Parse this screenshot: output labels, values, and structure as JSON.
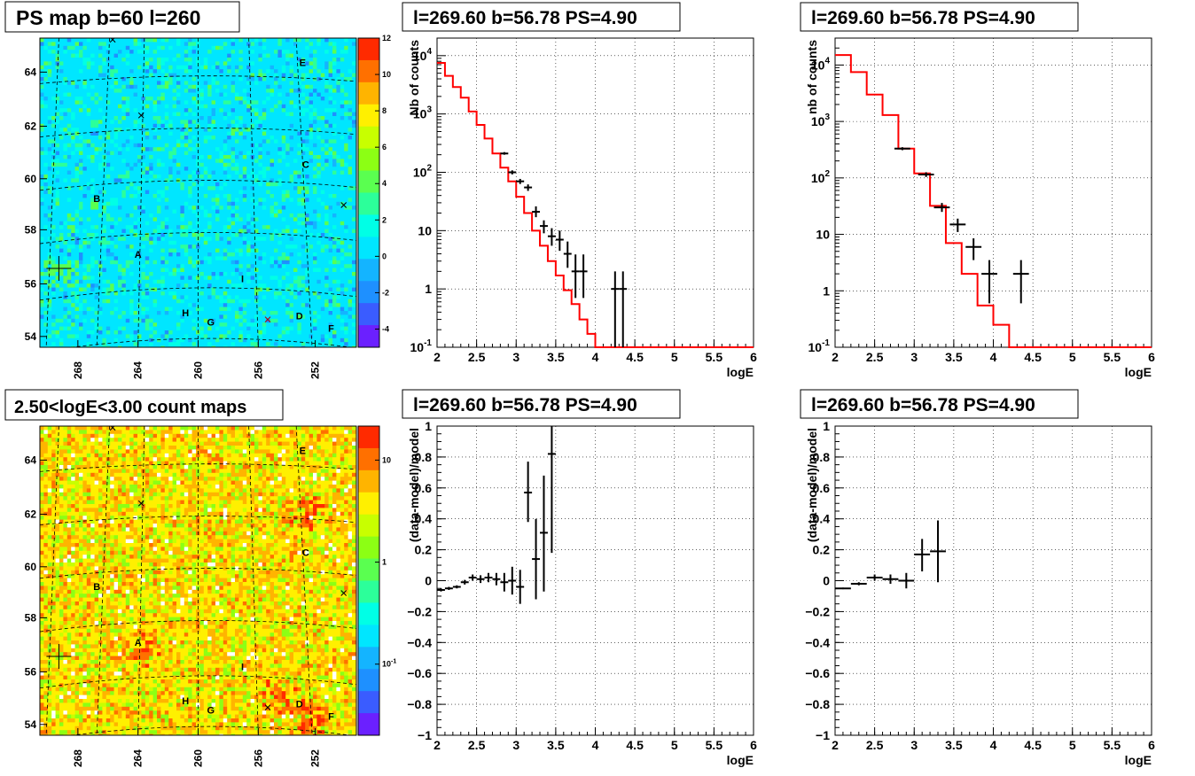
{
  "panels": {
    "map_top_title": "PS map b=60 l=260",
    "map_bottom_title": "2.50<logE<3.00 count maps",
    "spec_top_left_title": "l=269.60 b=56.78 PS=4.90",
    "spec_top_right_title": "l=269.60 b=56.78 PS=4.90",
    "res_bottom_left_title": "l=269.60 b=56.78 PS=4.90",
    "res_bottom_right_title": "l=269.60 b=56.78 PS=4.90"
  },
  "maps": {
    "x_ticks": [
      "268",
      "264",
      "260",
      "256",
      "252"
    ],
    "y_ticks": [
      "64",
      "62",
      "60",
      "58",
      "56",
      "54"
    ],
    "source_labels": [
      "A",
      "B",
      "C",
      "D",
      "E",
      "F",
      "G",
      "H",
      "I"
    ],
    "top_colorbar_ticks": [
      "12",
      "10",
      "8",
      "6",
      "4",
      "2",
      "0",
      "-2",
      "-4"
    ],
    "bottom_colorbar_ticks": [
      "10",
      "1",
      "10-1"
    ]
  },
  "chart_data": [
    {
      "type": "line",
      "panel": "top-middle",
      "title": "l=269.60 b=56.78 PS=4.90",
      "xlabel": "logE",
      "ylabel": "Nb of counts",
      "xlim": [
        2,
        6
      ],
      "ylim": [
        0.1,
        20000
      ],
      "ylog": true,
      "grid": true,
      "x_ticks": [
        "2",
        "2.5",
        "3",
        "3.5",
        "4",
        "4.5",
        "5",
        "5.5",
        "6"
      ],
      "y_ticks": [
        "10^4",
        "10^3",
        "10^2",
        "10",
        "1",
        "10^-1"
      ],
      "series": [
        {
          "type": "step",
          "color": "#ff0000",
          "x": [
            2.0,
            2.1,
            2.2,
            2.3,
            2.4,
            2.5,
            2.6,
            2.7,
            2.8,
            2.9,
            3.0,
            3.1,
            3.2,
            3.3,
            3.4,
            3.5,
            3.6,
            3.7,
            3.8,
            3.9,
            4.0,
            4.1,
            4.2,
            6.0
          ],
          "values": [
            7500,
            4500,
            2900,
            1900,
            1100,
            650,
            380,
            210,
            120,
            70,
            38,
            20,
            10,
            5.5,
            3.0,
            1.7,
            0.95,
            0.55,
            0.3,
            0.17,
            0.1,
            0.1,
            0.1,
            0.1
          ]
        },
        {
          "type": "errorbar",
          "color": "#000000",
          "points": [
            {
              "x": 2.85,
              "y": 210,
              "ylo": 200,
              "yhi": 222
            },
            {
              "x": 2.95,
              "y": 100,
              "ylo": 92,
              "yhi": 108
            },
            {
              "x": 3.05,
              "y": 70,
              "ylo": 63,
              "yhi": 77
            },
            {
              "x": 3.15,
              "y": 55,
              "ylo": 48,
              "yhi": 62
            },
            {
              "x": 3.25,
              "y": 21,
              "ylo": 17,
              "yhi": 26
            },
            {
              "x": 3.35,
              "y": 12,
              "ylo": 9,
              "yhi": 15
            },
            {
              "x": 3.45,
              "y": 8,
              "ylo": 5.5,
              "yhi": 11
            },
            {
              "x": 3.55,
              "y": 7,
              "ylo": 4.5,
              "yhi": 10
            },
            {
              "x": 3.65,
              "y": 4,
              "ylo": 2.3,
              "yhi": 6.5
            },
            {
              "x": 3.75,
              "y": 2,
              "ylo": 0.7,
              "yhi": 3.9
            },
            {
              "x": 3.85,
              "y": 2,
              "ylo": 0.7,
              "yhi": 3.9
            },
            {
              "x": 4.25,
              "y": 1,
              "ylo": 0.1,
              "yhi": 2.0
            },
            {
              "x": 4.35,
              "y": 1,
              "ylo": 0.1,
              "yhi": 2.0
            }
          ]
        }
      ]
    },
    {
      "type": "line",
      "panel": "top-right",
      "title": "l=269.60 b=56.78 PS=4.90",
      "xlabel": "logE",
      "ylabel": "nb of counts",
      "xlim": [
        2,
        6
      ],
      "ylim": [
        0.1,
        30000
      ],
      "ylog": true,
      "grid": true,
      "x_ticks": [
        "2",
        "2.5",
        "3",
        "3.5",
        "4",
        "4.5",
        "5",
        "5.5",
        "6"
      ],
      "y_ticks": [
        "10^4",
        "10^3",
        "10^2",
        "10",
        "1",
        "10^-1"
      ],
      "series": [
        {
          "type": "step",
          "color": "#ff0000",
          "x": [
            2.0,
            2.2,
            2.4,
            2.6,
            2.8,
            3.0,
            3.2,
            3.4,
            3.6,
            3.8,
            4.0,
            4.2,
            6.0
          ],
          "values": [
            15000,
            7500,
            3000,
            1300,
            330,
            120,
            32,
            7,
            2,
            0.55,
            0.25,
            0.1,
            0.1
          ]
        },
        {
          "type": "errorbar",
          "color": "#000000",
          "points": [
            {
              "x": 2.85,
              "y": 330,
              "ylo": 310,
              "yhi": 350
            },
            {
              "x": 3.15,
              "y": 115,
              "ylo": 104,
              "yhi": 126
            },
            {
              "x": 3.35,
              "y": 30,
              "ylo": 25,
              "yhi": 36
            },
            {
              "x": 3.55,
              "y": 15,
              "ylo": 11,
              "yhi": 19
            },
            {
              "x": 3.75,
              "y": 6,
              "ylo": 3.5,
              "yhi": 8.5
            },
            {
              "x": 3.95,
              "y": 2,
              "ylo": 0.6,
              "yhi": 3.5
            },
            {
              "x": 4.35,
              "y": 2,
              "ylo": 0.6,
              "yhi": 3.5
            }
          ]
        }
      ]
    },
    {
      "type": "scatter",
      "panel": "bottom-middle",
      "title": "l=269.60 b=56.78 PS=4.90",
      "xlabel": "logE",
      "ylabel": "(data-model)/model",
      "xlim": [
        2,
        6
      ],
      "ylim": [
        -1,
        1
      ],
      "grid": true,
      "x_ticks": [
        "2",
        "2.5",
        "3",
        "3.5",
        "4",
        "4.5",
        "5",
        "5.5",
        "6"
      ],
      "y_ticks": [
        "1",
        "0.8",
        "0.6",
        "0.4",
        "0.2",
        "0",
        "-0.2",
        "-0.4",
        "-0.6",
        "-0.8",
        "-1"
      ],
      "series": [
        {
          "type": "errorbar",
          "color": "#000000",
          "points": [
            {
              "x": 2.05,
              "y": -0.06,
              "ylo": -0.07,
              "yhi": -0.05
            },
            {
              "x": 2.15,
              "y": -0.05,
              "ylo": -0.06,
              "yhi": -0.04
            },
            {
              "x": 2.25,
              "y": -0.04,
              "ylo": -0.05,
              "yhi": -0.03
            },
            {
              "x": 2.35,
              "y": -0.01,
              "ylo": -0.025,
              "yhi": 0.005
            },
            {
              "x": 2.45,
              "y": 0.02,
              "ylo": 0.0,
              "yhi": 0.04
            },
            {
              "x": 2.55,
              "y": 0.01,
              "ylo": -0.015,
              "yhi": 0.035
            },
            {
              "x": 2.65,
              "y": 0.02,
              "ylo": -0.01,
              "yhi": 0.05
            },
            {
              "x": 2.75,
              "y": 0.01,
              "ylo": -0.03,
              "yhi": 0.05
            },
            {
              "x": 2.85,
              "y": -0.01,
              "ylo": -0.07,
              "yhi": 0.05
            },
            {
              "x": 2.95,
              "y": 0.0,
              "ylo": -0.09,
              "yhi": 0.09
            },
            {
              "x": 3.05,
              "y": -0.04,
              "ylo": -0.15,
              "yhi": 0.07
            },
            {
              "x": 3.15,
              "y": 0.57,
              "ylo": 0.38,
              "yhi": 0.77
            },
            {
              "x": 3.25,
              "y": 0.14,
              "ylo": -0.12,
              "yhi": 0.4
            },
            {
              "x": 3.35,
              "y": 0.31,
              "ylo": -0.07,
              "yhi": 0.68
            },
            {
              "x": 3.45,
              "y": 0.82,
              "ylo": 0.18,
              "yhi": 1.0
            }
          ]
        }
      ]
    },
    {
      "type": "scatter",
      "panel": "bottom-right",
      "title": "l=269.60 b=56.78 PS=4.90",
      "xlabel": "logE",
      "ylabel": "(data-model)/model",
      "xlim": [
        2,
        6
      ],
      "ylim": [
        -1,
        1
      ],
      "grid": true,
      "x_ticks": [
        "2",
        "2.5",
        "3",
        "3.5",
        "4",
        "4.5",
        "5",
        "5.5",
        "6"
      ],
      "y_ticks": [
        "1",
        "0.8",
        "0.6",
        "0.4",
        "0.2",
        "0",
        "-0.2",
        "-0.4",
        "-0.6",
        "-0.8",
        "-1"
      ],
      "series": [
        {
          "type": "errorbar",
          "color": "#000000",
          "points": [
            {
              "x": 2.1,
              "y": -0.05,
              "ylo": -0.055,
              "yhi": -0.045
            },
            {
              "x": 2.3,
              "y": -0.02,
              "ylo": -0.03,
              "yhi": -0.01
            },
            {
              "x": 2.5,
              "y": 0.02,
              "ylo": 0.0,
              "yhi": 0.04
            },
            {
              "x": 2.7,
              "y": 0.01,
              "ylo": -0.02,
              "yhi": 0.04
            },
            {
              "x": 2.9,
              "y": 0.0,
              "ylo": -0.05,
              "yhi": 0.05
            },
            {
              "x": 3.1,
              "y": 0.17,
              "ylo": 0.06,
              "yhi": 0.27
            },
            {
              "x": 3.3,
              "y": 0.19,
              "ylo": -0.01,
              "yhi": 0.39
            }
          ]
        }
      ]
    }
  ]
}
